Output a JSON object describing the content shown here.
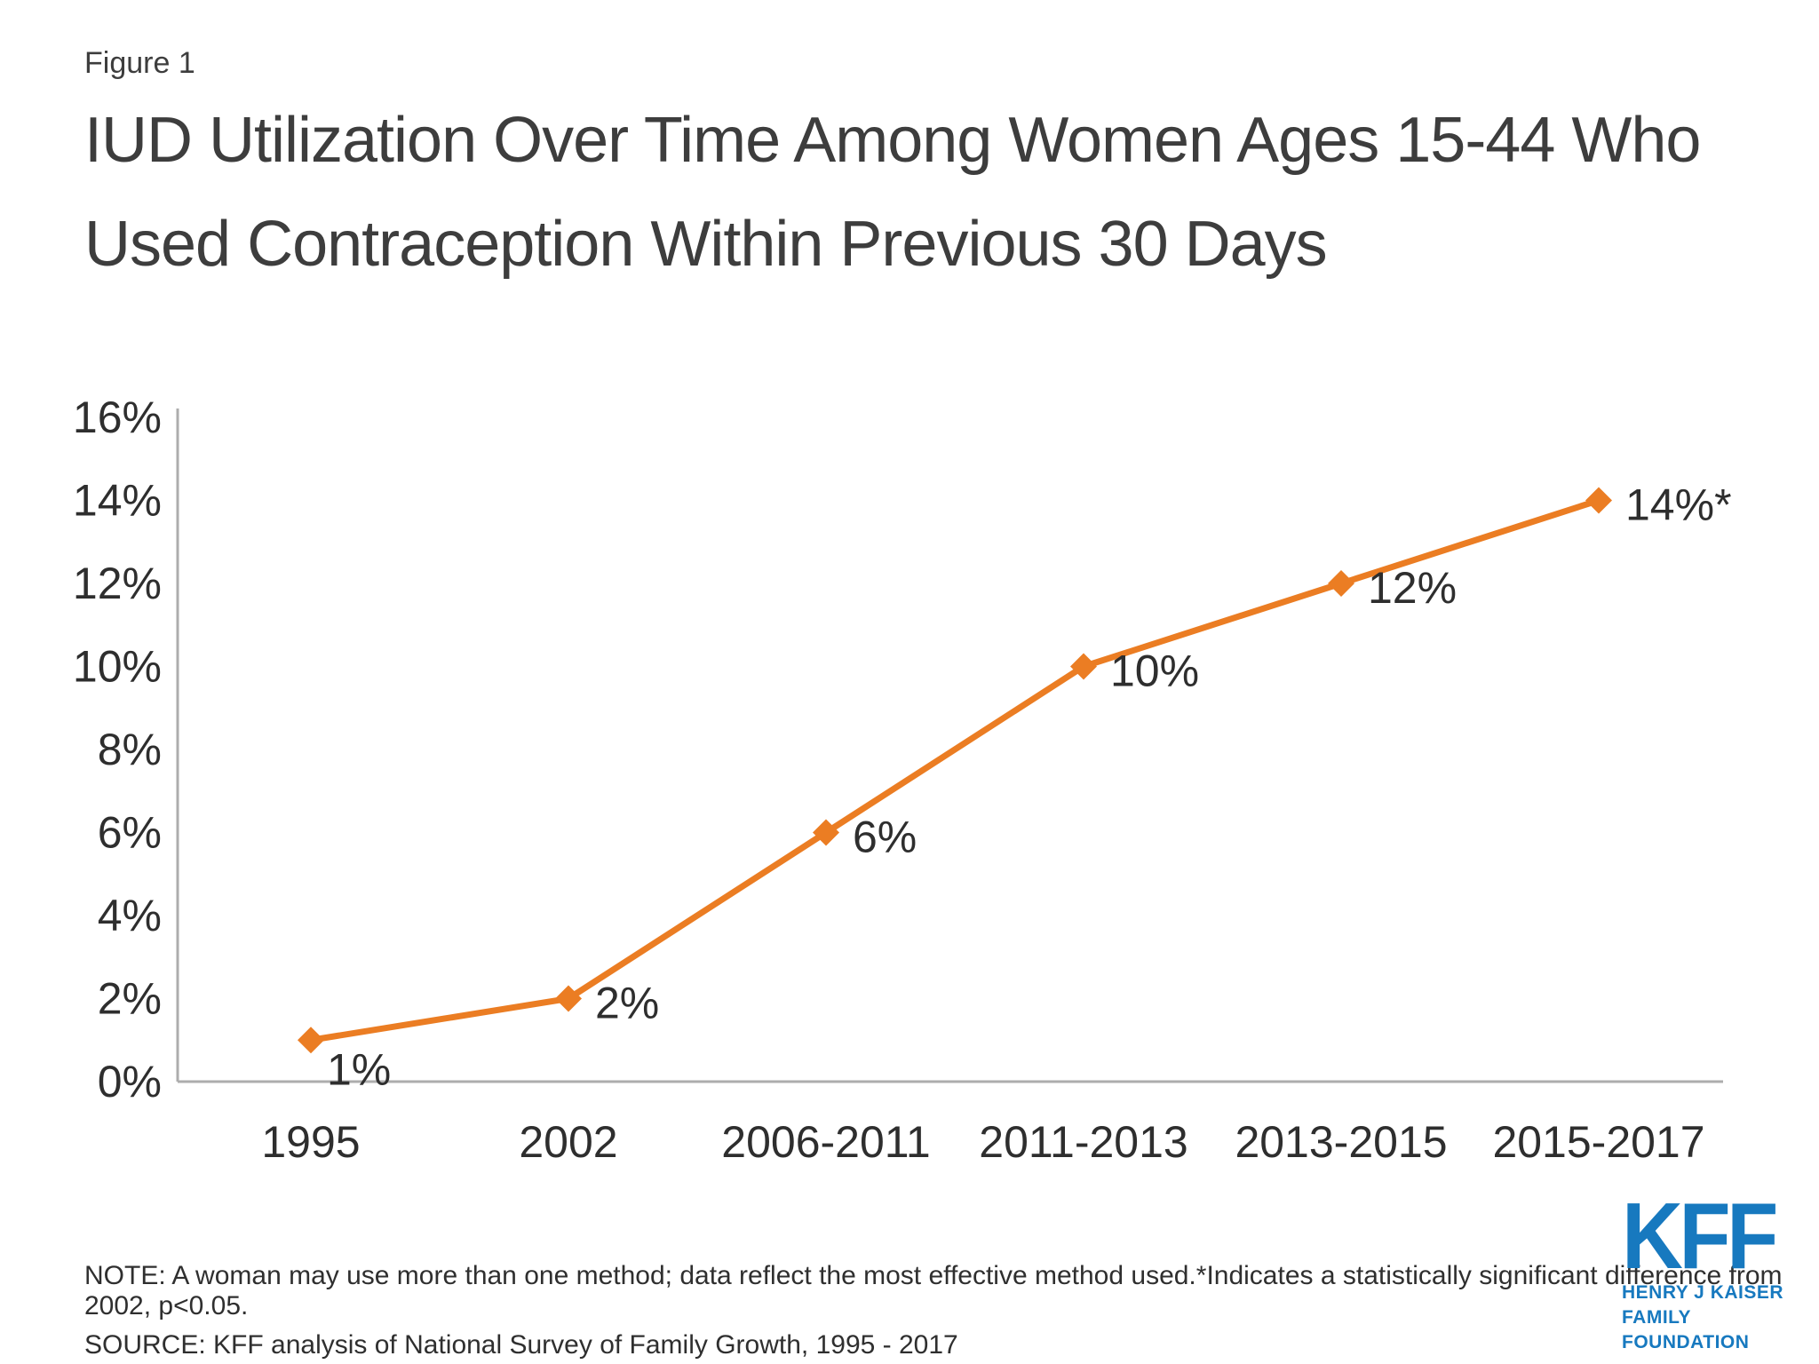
{
  "figure_label": "Figure 1",
  "title": {
    "line1": "IUD Utilization Over Time Among Women Ages 15-44 Who",
    "line2": "Used Contraception Within Previous 30 Days"
  },
  "chart_data": {
    "type": "line",
    "title": "IUD Utilization Over Time Among Women Ages 15-44 Who Used Contraception Within Previous 30 Days",
    "categories": [
      "1995",
      "2002",
      "2006-2011",
      "2011-2013",
      "2013-2015",
      "2015-2017"
    ],
    "series": [
      {
        "name": "IUD utilization among women ages 15-44 who used contraception within previous 30 days",
        "values": [
          1,
          2,
          6,
          10,
          12,
          14
        ],
        "point_labels": [
          "1%",
          "2%",
          "6%",
          "10%",
          "12%",
          "14%*"
        ]
      }
    ],
    "xlabel": "",
    "ylabel": "",
    "ylim": [
      0,
      16
    ],
    "ytick_interval": 2,
    "ytick_labels": [
      "0%",
      "2%",
      "4%",
      "6%",
      "8%",
      "10%",
      "12%",
      "14%",
      "16%"
    ],
    "grid": false,
    "legend": "none",
    "line_color": "#EB7D23",
    "marker_shape": "diamond",
    "axis_color": "#ADADAD",
    "label_color": "#2E2E2E"
  },
  "footer": {
    "note": "NOTE: A woman may use more than one method; data reflect the most effective method used.*Indicates a statistically significant difference from 2002, p<0.05.",
    "source": "SOURCE: KFF analysis of National Survey of Family Growth, 1995 - 2017"
  },
  "logo": {
    "acronym": "KFF",
    "line1": "HENRY J KAISER",
    "line2": "FAMILY FOUNDATION",
    "color": "#1779BF"
  }
}
